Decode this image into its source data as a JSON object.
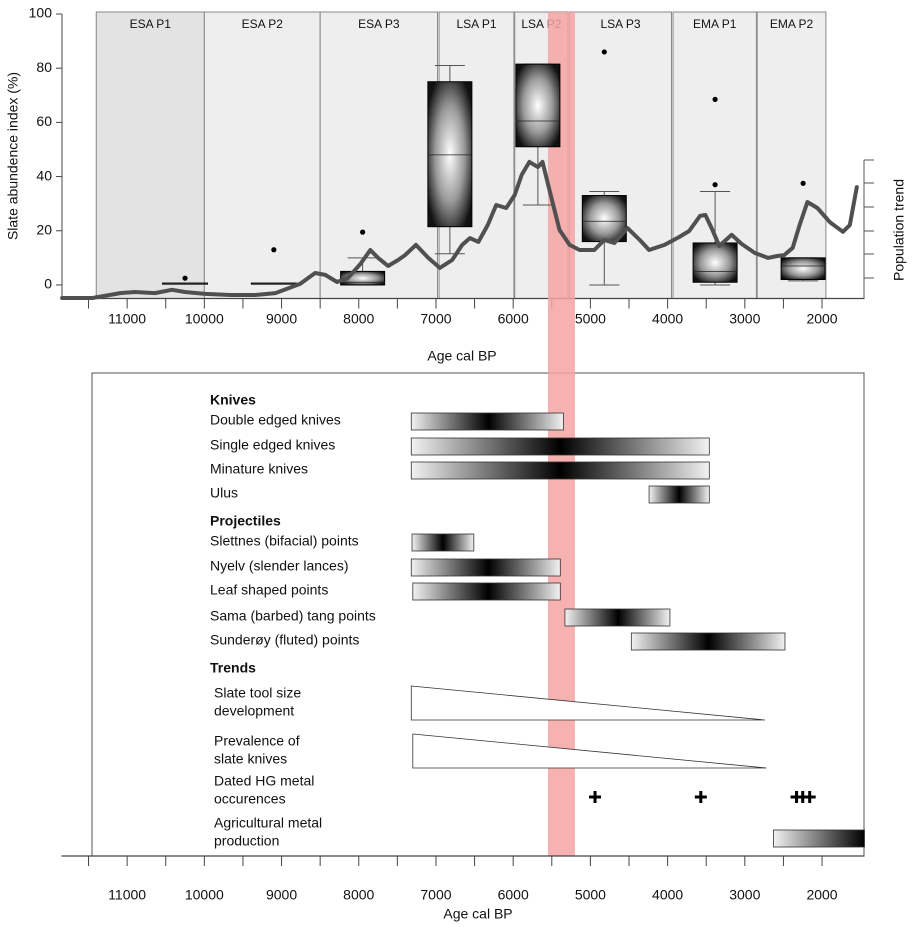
{
  "chart_data": [
    {
      "type": "box",
      "y_label": "Slate abundence index (%)",
      "x_label": "Age cal BP",
      "y2_label": "Population trend",
      "xlim": [
        11850,
        1450
      ],
      "xticks": [
        11000,
        10000,
        9000,
        8000,
        7000,
        6000,
        5000,
        4000,
        3000,
        2000
      ],
      "xminor": [
        11500,
        10500,
        9500,
        8500,
        7500,
        6500,
        5500,
        4500,
        3500,
        2500
      ],
      "ylim": [
        -5,
        100
      ],
      "yticks": [
        0,
        20,
        40,
        60,
        80,
        100
      ],
      "highlight": {
        "start": 5550,
        "end": 5200,
        "color": "#f4a3a3"
      },
      "periods": [
        {
          "name": "ESA P1",
          "start": 11400,
          "end": 10000,
          "color": "#e3e3e3"
        },
        {
          "name": "ESA P2",
          "start": 10000,
          "end": 8500,
          "color": "#eeeeee"
        },
        {
          "name": "ESA P3",
          "start": 8500,
          "end": 6980,
          "color": "#eeeeee"
        },
        {
          "name": "LSA P1",
          "start": 6960,
          "end": 5990,
          "color": "#eeeeee"
        },
        {
          "name": "LSA P2",
          "start": 5980,
          "end": 5290,
          "color": "#eeeeee"
        },
        {
          "name": "LSA P3",
          "start": 5270,
          "end": 3950,
          "color": "#eeeeee"
        },
        {
          "name": "EMA P1",
          "start": 3930,
          "end": 2850,
          "color": "#eeeeee"
        },
        {
          "name": "EMA P2",
          "start": 2840,
          "end": 1950,
          "color": "#eeeeee"
        }
      ],
      "boxes": [
        {
          "x": 10250,
          "low": 0.5,
          "q1": 0.5,
          "median": 0.5,
          "q3": 0.5,
          "high": 0.5,
          "outliers": [
            2.5
          ]
        },
        {
          "x": 9100,
          "low": 0.5,
          "q1": 0.5,
          "median": 0.5,
          "q3": 0.5,
          "high": 0.5,
          "outliers": [
            13
          ]
        },
        {
          "x": 7950,
          "low": 0,
          "q1": 0,
          "median": 1,
          "q3": 5,
          "high": 10,
          "outliers": [
            19.5
          ]
        },
        {
          "x": 6820,
          "low": 11.5,
          "q1": 21.5,
          "median": 48,
          "q3": 75,
          "high": 81,
          "outliers": []
        },
        {
          "x": 5680,
          "low": 29.5,
          "q1": 51,
          "median": 60.5,
          "q3": 81.5,
          "high": 81.5,
          "outliers": []
        },
        {
          "x": 4820,
          "low": 0,
          "q1": 16,
          "median": 23.5,
          "q3": 33,
          "high": 34.5,
          "outliers": [
            86
          ]
        },
        {
          "x": 3385,
          "low": 0,
          "q1": 1,
          "median": 5,
          "q3": 15.5,
          "high": 34.5,
          "outliers": [
            37,
            68.5
          ]
        },
        {
          "x": 2245,
          "low": 1.5,
          "q1": 2,
          "median": 7,
          "q3": 10,
          "high": 10,
          "outliers": [
            37.5
          ]
        }
      ],
      "line": {
        "color": "#505050",
        "x": [
          11842,
          11450,
          11090,
          10900,
          10640,
          10420,
          10250,
          9990,
          9660,
          9340,
          9080,
          8760,
          8565,
          8435,
          8280,
          8140,
          7980,
          7850,
          7750,
          7620,
          7490,
          7400,
          7260,
          7100,
          6950,
          6790,
          6660,
          6560,
          6450,
          6330,
          6220,
          6090,
          5980,
          5890,
          5790,
          5680,
          5620,
          5530,
          5400,
          5270,
          5140,
          4950,
          4820,
          4690,
          4520,
          4360,
          4240,
          4040,
          3850,
          3720,
          3580,
          3510,
          3430,
          3330,
          3170,
          3040,
          2870,
          2700,
          2580,
          2490,
          2380,
          2290,
          2190,
          2060,
          1900,
          1730,
          1640,
          1550
        ],
        "values": [
          -4.8,
          -4.8,
          -3,
          -2.6,
          -3,
          -1.8,
          -2.6,
          -3.3,
          -3.7,
          -3.7,
          -3,
          0.4,
          4.4,
          3.7,
          1.1,
          2.6,
          7.7,
          12.9,
          10,
          7,
          9.2,
          11,
          14.8,
          10,
          6.3,
          9.2,
          14.8,
          17.3,
          15.9,
          22.1,
          29.5,
          28.4,
          33.2,
          40.6,
          45.4,
          43.5,
          45.4,
          35,
          20.3,
          14.8,
          12.9,
          12.9,
          16.6,
          15.5,
          21,
          16.6,
          12.9,
          14.8,
          17.7,
          19.9,
          25.5,
          25.8,
          21,
          14.4,
          18.5,
          15.1,
          11.8,
          10,
          10.7,
          11,
          13.7,
          22.1,
          30.6,
          28.4,
          23.2,
          19.6,
          22.1,
          36.1
        ]
      }
    },
    {
      "type": "range",
      "x_label": "Age cal BP",
      "xlim": [
        11850,
        1450
      ],
      "xticks": [
        11000,
        10000,
        9000,
        8000,
        7000,
        6000,
        5000,
        4000,
        3000,
        2000
      ],
      "xminor": [
        11500,
        10500,
        9500,
        8500,
        7500,
        6500,
        5500,
        4500,
        3500,
        2500
      ],
      "groups": [
        {
          "label": "Knives",
          "rows": [
            {
              "lines": [
                "Double edged knives"
              ],
              "start": 7320,
              "end": 5350,
              "peak": 6320
            },
            {
              "lines": [
                "Single edged knives"
              ],
              "start": 7320,
              "end": 3460,
              "peak": 5390
            },
            {
              "lines": [
                "Minature knives"
              ],
              "start": 7320,
              "end": 3460,
              "peak": 5390
            },
            {
              "lines": [
                "Ulus"
              ],
              "start": 4240,
              "end": 3460,
              "peak": 3850
            }
          ]
        },
        {
          "label": "Projectiles",
          "rows": [
            {
              "lines": [
                "Slettnes (bifacial) points"
              ],
              "start": 7310,
              "end": 6510,
              "peak": 6910
            },
            {
              "lines": [
                "Nyelv (slender lances)"
              ],
              "start": 7320,
              "end": 5390,
              "peak": 6320
            },
            {
              "lines": [
                "Leaf shaped points"
              ],
              "start": 7300,
              "end": 5390,
              "peak": 6320
            },
            {
              "lines": [
                "Sama (barbed) tang points"
              ],
              "start": 5330,
              "end": 3970,
              "peak": 4640
            },
            {
              "lines": [
                "Sunderøy (fluted) points"
              ],
              "start": 4470,
              "end": 2480,
              "peak": 3470
            }
          ]
        },
        {
          "label": "Trends",
          "rows": [
            {
              "lines": [
                "Slate tool size",
                "development"
              ],
              "start": 7320,
              "end": 2740,
              "shape": "wedge"
            },
            {
              "lines": [
                "Prevalence of",
                "slate knives"
              ],
              "start": 7300,
              "end": 2720,
              "shape": "wedge"
            },
            {
              "lines": [
                "Dated HG metal",
                "occurences"
              ],
              "events": [
                4940,
                3570,
                2330,
                2250,
                2160
              ]
            },
            {
              "lines": [
                "Agricultural metal",
                "production"
              ],
              "start": 2630,
              "end": 1450,
              "peak": 1450
            }
          ]
        }
      ]
    }
  ]
}
